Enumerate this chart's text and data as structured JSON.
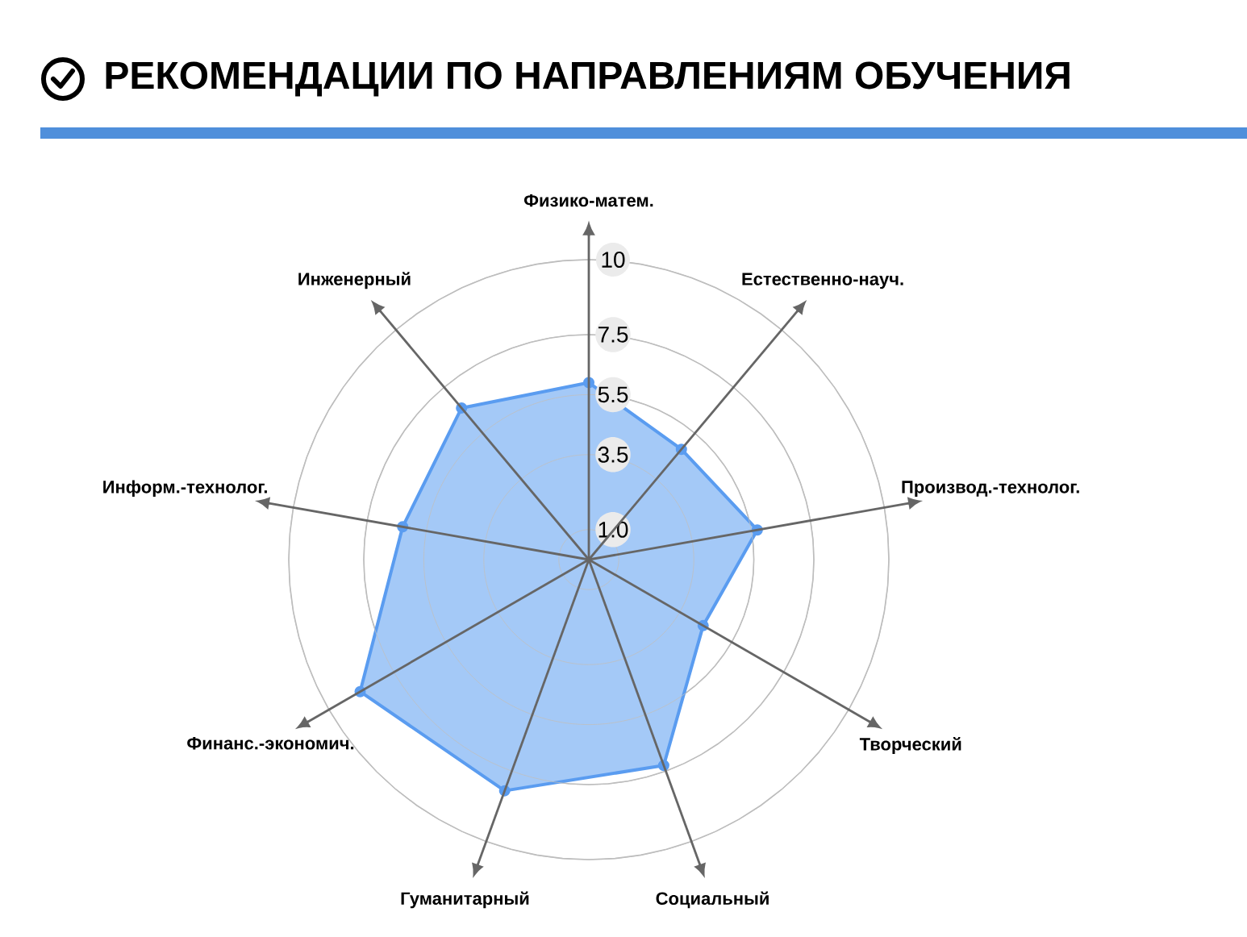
{
  "chart_data": {
    "type": "radar",
    "title": "РЕКОМЕНДАЦИИ ПО НАПРАВЛЕНИЯМ ОБУЧЕНИЯ",
    "categories": [
      "Физико-матем.",
      "Естественно-науч.",
      "Производ.-технолог.",
      "Творческий",
      "Социальный",
      "Гуманитарный",
      "Финанс.-экономич.",
      "Информ.-технолог.",
      "Инженерный"
    ],
    "series": [
      {
        "color": "#5a9cf0",
        "values": [
          5.9,
          4.8,
          5.7,
          4.4,
          7.3,
          8.2,
          8.8,
          6.3,
          6.6
        ]
      }
    ],
    "ylim": [
      0,
      10
    ],
    "yticks": [
      {
        "value": 1,
        "label": "1.0"
      },
      3.5,
      5.5,
      7.5,
      10
    ],
    "grid": true,
    "marker": "circle"
  }
}
